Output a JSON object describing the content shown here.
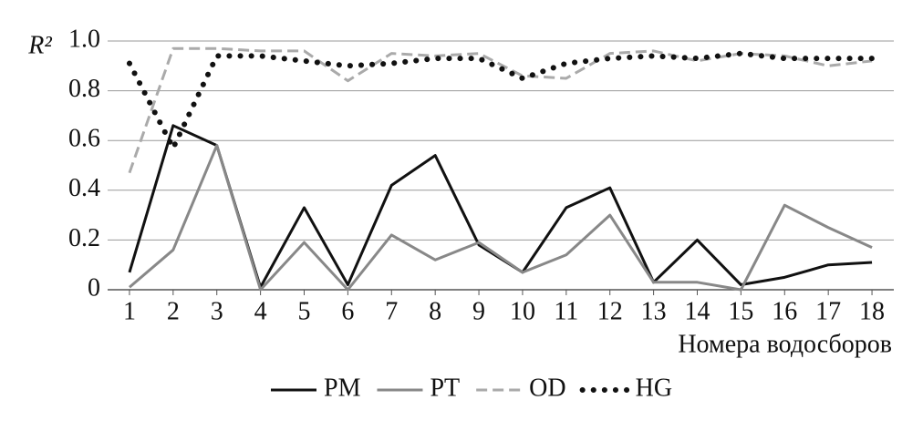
{
  "chart_data": {
    "type": "line",
    "ylabel": "R²",
    "xlabel": "Номера водосборов",
    "x": [
      1,
      2,
      3,
      4,
      5,
      6,
      7,
      8,
      9,
      10,
      11,
      12,
      13,
      14,
      15,
      16,
      17,
      18
    ],
    "xlim": [
      0.5,
      18.5
    ],
    "xticks": [
      1,
      2,
      3,
      4,
      5,
      6,
      7,
      8,
      9,
      10,
      11,
      12,
      13,
      14,
      15,
      16,
      17,
      18
    ],
    "ylim": [
      0,
      1
    ],
    "yticks": [
      0,
      0.2,
      0.4,
      0.6,
      0.8,
      {
        "value": 1,
        "label": "1.0"
      }
    ],
    "grid": true,
    "legend": "bottom",
    "series": [
      {
        "name": "PM",
        "color": "#111111",
        "style": "solid",
        "values": [
          0.07,
          0.66,
          0.58,
          0.01,
          0.33,
          0.02,
          0.42,
          0.54,
          0.18,
          0.07,
          0.33,
          0.41,
          0.03,
          0.2,
          0.02,
          0.05,
          0.1,
          0.11
        ]
      },
      {
        "name": "PT",
        "color": "#888888",
        "style": "solid",
        "values": [
          0.01,
          0.16,
          0.58,
          0.0,
          0.19,
          0.0,
          0.22,
          0.12,
          0.19,
          0.07,
          0.14,
          0.3,
          0.03,
          0.03,
          0.0,
          0.34,
          0.25,
          0.17
        ]
      },
      {
        "name": "OD",
        "color": "#aaaaaa",
        "style": "dashed",
        "values": [
          0.47,
          0.97,
          0.97,
          0.96,
          0.96,
          0.84,
          0.95,
          0.94,
          0.95,
          0.86,
          0.85,
          0.95,
          0.96,
          0.92,
          0.95,
          0.94,
          0.9,
          0.92
        ]
      },
      {
        "name": "HG",
        "color": "#111111",
        "style": "dotted",
        "values": [
          0.91,
          0.57,
          0.94,
          0.94,
          0.92,
          0.9,
          0.91,
          0.93,
          0.93,
          0.85,
          0.91,
          0.93,
          0.94,
          0.93,
          0.95,
          0.93,
          0.93,
          0.93
        ]
      }
    ]
  }
}
